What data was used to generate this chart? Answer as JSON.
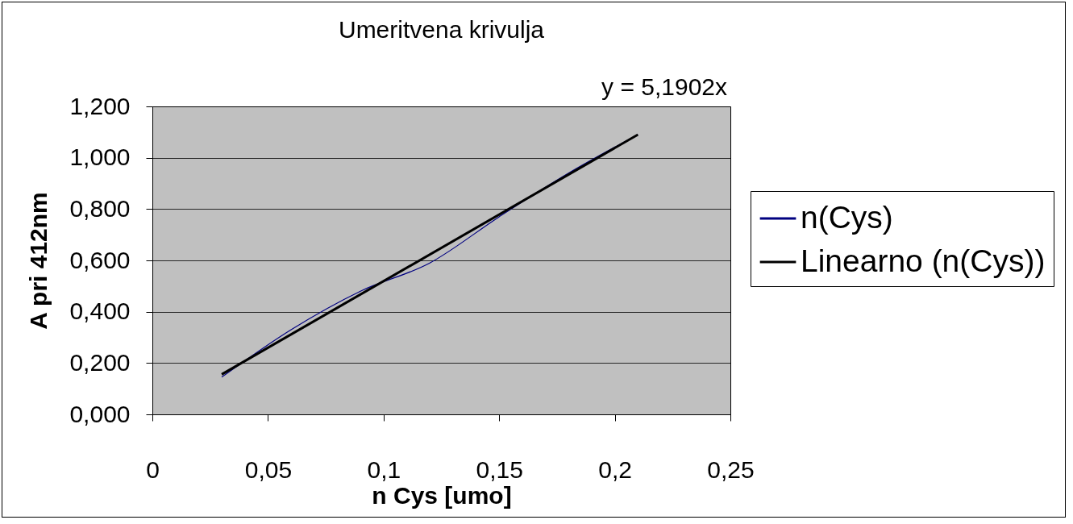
{
  "chart_data": {
    "type": "line",
    "title": "Umeritvena krivulja",
    "xlabel": "n Cys [umo]",
    "ylabel": "A pri 412nm",
    "series": [
      {
        "name": "n(Cys)",
        "color": "#000080",
        "x": [
          0.03,
          0.06,
          0.09,
          0.12,
          0.15,
          0.18,
          0.21
        ],
        "values": [
          0.145,
          0.33,
          0.48,
          0.59,
          0.77,
          0.94,
          1.09
        ]
      },
      {
        "name": "Linearno (n(Cys))",
        "color": "#000000",
        "x": [
          0.03,
          0.21
        ],
        "values": [
          0.156,
          1.09
        ]
      }
    ],
    "annotations": [
      "y = 5,1902x"
    ],
    "xlim": [
      0,
      0.25
    ],
    "xticks": [
      0,
      {
        "value": 0.05,
        "label": "0,05"
      },
      {
        "value": 0.1,
        "label": "0,1"
      },
      {
        "value": 0.15,
        "label": "0,15"
      },
      {
        "value": 0.2,
        "label": "0,2"
      },
      {
        "value": 0.25,
        "label": "0,25"
      }
    ],
    "ylim": [
      0,
      1.2
    ],
    "yticks": [
      {
        "value": 0,
        "label": "0,000"
      },
      {
        "value": 0.2,
        "label": "0,200"
      },
      {
        "value": 0.4,
        "label": "0,400"
      },
      {
        "value": 0.6,
        "label": "0,600"
      },
      {
        "value": 0.8,
        "label": "0,800"
      },
      {
        "value": 1,
        "label": "1,000"
      },
      {
        "value": 1.2,
        "label": "1,200"
      }
    ],
    "grid": "y",
    "legend": "right",
    "marker": "none",
    "line_style": "solid"
  }
}
